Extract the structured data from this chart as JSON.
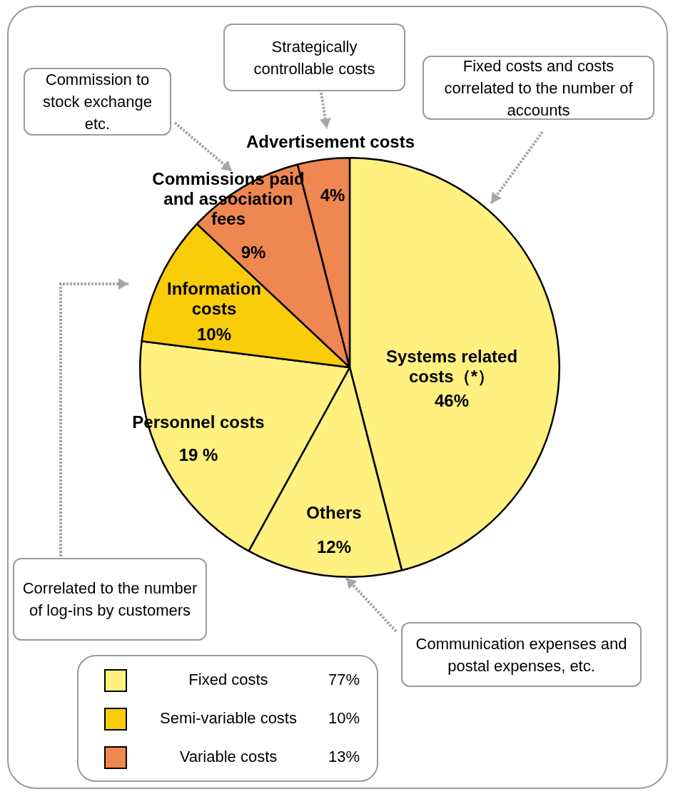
{
  "chart_data": {
    "type": "pie",
    "categories": [
      "Systems related costs（*）",
      "Others",
      "Personnel costs",
      "Information costs",
      "Commissions paid and association fees",
      "Advertisement costs"
    ],
    "values": [
      46,
      12,
      19,
      10,
      9,
      4
    ],
    "colors": [
      "#fff07f",
      "#fff07f",
      "#fff07f",
      "#f9cc0a",
      "#ee8750",
      "#ee8750"
    ],
    "value_labels": [
      "46%",
      "12%",
      "19 %",
      "10%",
      "9%",
      "4%"
    ],
    "annotations": [
      "Commission to stock exchange etc.",
      "Strategically controllable costs",
      "Fixed costs and costs correlated to the number of accounts",
      "Correlated to the number of log-ins by customers",
      "Communication expenses and postal expenses, etc.",
      "Fixed costs",
      "77%",
      "Semi-variable costs",
      "10%",
      "Variable costs",
      "13%"
    ]
  }
}
